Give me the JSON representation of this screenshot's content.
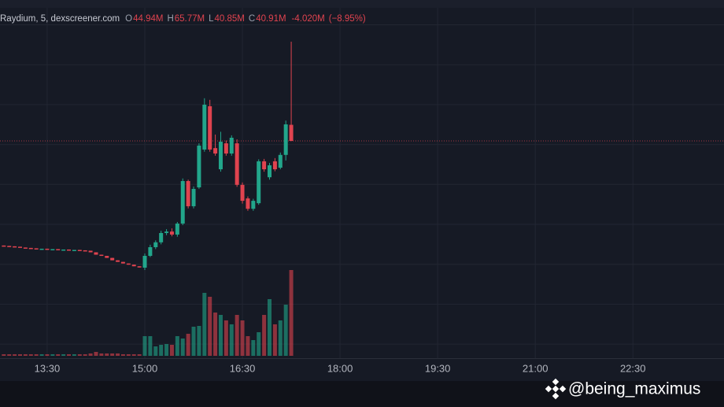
{
  "chart_data": {
    "type": "candlestick",
    "header": {
      "source": "Raydium, 5, dexscreener.com",
      "ohlc": [
        {
          "label": "O",
          "value": "44.94M"
        },
        {
          "label": "H",
          "value": "65.77M"
        },
        {
          "label": "L",
          "value": "40.85M"
        },
        {
          "label": "C",
          "value": "40.91M"
        }
      ],
      "change": "-4.020M",
      "change_pct": "(−8.95%)"
    },
    "x": [
      770,
      775,
      780,
      785,
      790,
      795,
      800,
      805,
      810,
      815,
      820,
      825,
      830,
      835,
      840,
      845,
      850,
      855,
      860,
      865,
      870,
      875,
      880,
      885,
      890,
      895,
      900,
      905,
      910,
      915,
      920,
      925,
      930,
      935,
      940,
      945,
      950,
      955,
      960,
      965,
      970,
      975,
      980,
      985,
      990,
      995,
      1000,
      1005,
      1010,
      1015,
      1020,
      1025,
      1030,
      1035
    ],
    "open": [
      14.7,
      14.6,
      14.5,
      14.4,
      14.2,
      14.1,
      14.0,
      13.9,
      13.9,
      13.8,
      13.8,
      13.7,
      13.7,
      13.6,
      13.6,
      13.5,
      13.4,
      13.0,
      12.4,
      12.1,
      11.6,
      11.0,
      10.6,
      10.2,
      9.9,
      9.5,
      9.15,
      12.11,
      14.28,
      15.5,
      17.83,
      18.2,
      17.44,
      20.2,
      30.85,
      24.54,
      29.27,
      38.74,
      49.6,
      39.1,
      33.8,
      40.3,
      37.75,
      40.3,
      29.9,
      26.5,
      23.9,
      25.3,
      35.8,
      31.8,
      35.8,
      34.2,
      37.4,
      44.94
    ],
    "high": [
      14.7,
      14.6,
      14.5,
      14.4,
      14.2,
      14.1,
      14.0,
      13.9,
      13.9,
      13.8,
      13.8,
      13.7,
      13.7,
      13.6,
      13.6,
      13.5,
      13.4,
      13.0,
      12.4,
      12.1,
      11.6,
      11.0,
      10.6,
      10.2,
      9.9,
      9.5,
      12.7,
      14.9,
      16.0,
      18.4,
      18.8,
      19.0,
      20.6,
      31.5,
      31.2,
      29.5,
      40.3,
      51.6,
      51.2,
      42.5,
      43.2,
      41.0,
      42.3,
      41.3,
      30.5,
      27.0,
      26.4,
      36.3,
      36.4,
      35.4,
      36.6,
      38.0,
      46.0,
      65.77
    ],
    "low": [
      14.6,
      14.5,
      14.4,
      14.2,
      14.1,
      14.0,
      13.9,
      13.9,
      13.8,
      13.8,
      13.7,
      13.7,
      13.6,
      13.6,
      13.5,
      13.4,
      13.0,
      12.4,
      12.1,
      11.6,
      11.0,
      10.6,
      10.2,
      9.9,
      9.5,
      9.2,
      8.56,
      11.8,
      13.8,
      15.0,
      17.3,
      17.0,
      16.9,
      19.8,
      24.0,
      24.0,
      28.9,
      38.2,
      38.2,
      37.2,
      33.2,
      37.2,
      37.2,
      29.4,
      25.2,
      23.4,
      23.4,
      24.9,
      33.2,
      31.2,
      33.3,
      33.8,
      36.0,
      40.85
    ],
    "close": [
      14.6,
      14.5,
      14.4,
      14.2,
      14.1,
      14.0,
      13.9,
      13.9,
      13.8,
      13.8,
      13.7,
      13.7,
      13.6,
      13.6,
      13.5,
      13.4,
      13.0,
      12.4,
      12.1,
      11.6,
      11.0,
      10.6,
      10.2,
      9.9,
      9.5,
      9.2,
      12.11,
      14.28,
      15.5,
      17.83,
      18.2,
      17.44,
      20.2,
      30.85,
      24.54,
      28.88,
      39.73,
      49.98,
      38.74,
      37.75,
      40.7,
      37.75,
      41.7,
      29.9,
      25.9,
      23.9,
      25.9,
      35.8,
      33.8,
      34.8,
      33.8,
      37.4,
      45.05,
      40.91
    ],
    "volume": [
      2,
      2,
      2,
      2,
      2,
      2,
      2,
      2,
      2,
      2,
      2,
      2,
      2,
      2,
      2,
      2,
      3,
      5,
      3,
      3,
      3,
      3,
      2,
      2,
      2,
      2,
      25,
      25,
      12,
      14,
      15,
      14,
      25,
      22,
      28,
      37,
      38,
      80,
      75,
      55,
      52,
      45,
      40,
      52,
      45,
      25,
      20,
      30,
      52,
      72,
      40,
      45,
      65,
      109
    ],
    "up_color": "#22a68b",
    "down_color": "#e0434f",
    "xlim": [
      766.5,
      1434
    ],
    "xticks": [
      {
        "value": 810,
        "label": "13:30"
      },
      {
        "value": 900,
        "label": "15:00"
      },
      {
        "value": 990,
        "label": "16:30"
      },
      {
        "value": 1080,
        "label": "18:00"
      },
      {
        "value": 1170,
        "label": "19:30"
      },
      {
        "value": 1260,
        "label": "21:00"
      },
      {
        "value": 1350,
        "label": "22:30"
      }
    ],
    "ylim": [
      -13.53,
      74.24
    ],
    "yticks": [
      -10,
      0,
      10,
      20,
      30,
      40,
      50,
      60,
      70
    ],
    "grid": true,
    "watermark": "@being_maximus"
  }
}
